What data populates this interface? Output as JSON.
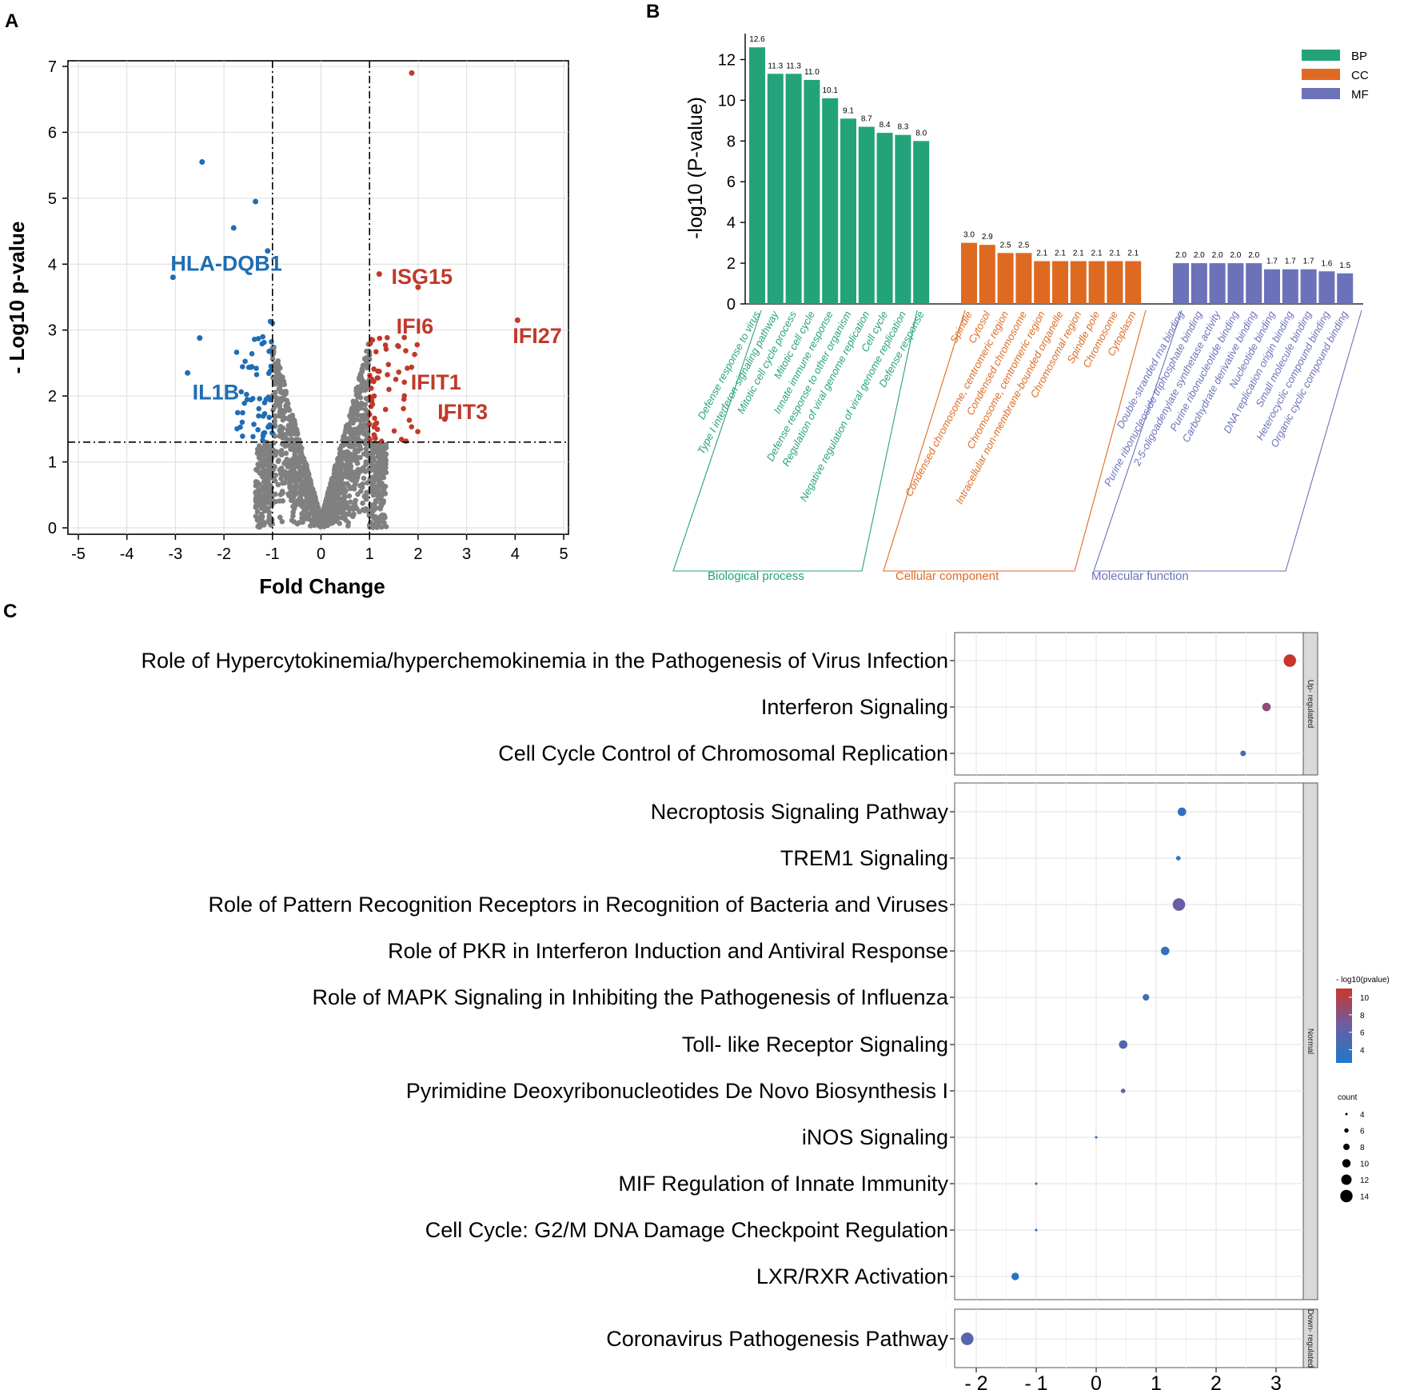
{
  "panels": {
    "a_letter": "A",
    "b_letter": "B",
    "c_letter": "C"
  },
  "colors": {
    "down": "#1f6db3",
    "up": "#c0392b",
    "ns": "#808080",
    "bp": "#24a37a",
    "cc": "#de6a21",
    "mf": "#6b72b9",
    "cbar_low": "#1f78c8",
    "cbar_mid": "#6a5ea5",
    "cbar_high": "#c8362b"
  },
  "chart_data": [
    {
      "type": "scatter",
      "name": "volcano",
      "xlabel": "Fold Change",
      "ylabel": "- Log10 p-value",
      "xlim": [
        -5,
        5
      ],
      "ylim": [
        0,
        7
      ],
      "x_ticks": [
        "-5",
        "-4",
        "-3",
        "-2",
        "-1",
        "0",
        "1",
        "2",
        "3",
        "4",
        "5"
      ],
      "y_ticks": [
        "0",
        "1",
        "2",
        "3",
        "4",
        "5",
        "6",
        "7"
      ],
      "thresholds": {
        "fc": [
          -1,
          1
        ],
        "p": 1.3
      },
      "labels": [
        {
          "text": "HLA-DQB1",
          "x": -3.1,
          "y": 3.9,
          "group": "down"
        },
        {
          "text": "IL1B",
          "x": -2.65,
          "y": 1.95,
          "group": "down"
        },
        {
          "text": "ISG15",
          "x": 1.45,
          "y": 3.7,
          "group": "up"
        },
        {
          "text": "IFI6",
          "x": 1.55,
          "y": 2.95,
          "group": "up"
        },
        {
          "text": "IFIT1",
          "x": 1.85,
          "y": 2.1,
          "group": "up"
        },
        {
          "text": "IFIT3",
          "x": 2.4,
          "y": 1.65,
          "group": "up"
        },
        {
          "text": "IFI27",
          "x": 3.95,
          "y": 2.8,
          "group": "up"
        }
      ],
      "highlight_points": [
        {
          "x": 1.87,
          "y": 6.9
        },
        {
          "x": 4.05,
          "y": 3.15
        },
        {
          "x": -2.45,
          "y": 5.55
        },
        {
          "x": -1.35,
          "y": 4.95
        },
        {
          "x": -1.8,
          "y": 4.55
        },
        {
          "x": -1.1,
          "y": 4.2
        },
        {
          "x": -3.05,
          "y": 3.8
        },
        {
          "x": -2.5,
          "y": 2.88
        },
        {
          "x": -2.75,
          "y": 2.35
        },
        {
          "x": 1.2,
          "y": 3.85
        },
        {
          "x": 2.0,
          "y": 3.65
        },
        {
          "x": 2.55,
          "y": 1.65
        }
      ]
    },
    {
      "type": "bar",
      "name": "go_enrichment",
      "ylabel": "-log10 (P-value)",
      "ylim": [
        0,
        13
      ],
      "y_ticks": [
        "0",
        "2",
        "4",
        "6",
        "8",
        "10",
        "12"
      ],
      "legend": [
        "BP",
        "CC",
        "MF"
      ],
      "groups": [
        {
          "name": "Biological process",
          "key": "bp",
          "categories": [
            "Defense response to virus",
            "Type I interferon signaling pathway",
            "Mitotic cell cycle process",
            "Mitotic cell cycle",
            "Innate immune response",
            "Defense response to other organism",
            "Regulation of viral genome replication",
            "Cell cycle",
            "Negative regulation of viral genome replication",
            "Defense response"
          ],
          "values": [
            12.6,
            11.3,
            11.3,
            11.0,
            10.1,
            9.1,
            8.7,
            8.4,
            8.3,
            8.0
          ],
          "value_labels": [
            "12.6",
            "11.3",
            "11.3",
            "11.0",
            "10.1",
            "9.1",
            "8.7",
            "8.4",
            "8.3",
            "8.0"
          ]
        },
        {
          "name": "Cellular component",
          "key": "cc",
          "categories": [
            "Spindle",
            "Cytosol",
            "Condensed chromosome, centromeric region",
            "Condensed chromosome",
            "Chromosome, centromeric region",
            "Intracellular non-membrane-bounded organelle",
            "Chromosomal region",
            "Spindle pole",
            "Chromosome",
            "Cytoplasm"
          ],
          "values": [
            3.0,
            2.9,
            2.5,
            2.5,
            2.1,
            2.1,
            2.1,
            2.1,
            2.1,
            2.1
          ],
          "value_labels": [
            "3.0",
            "2.9",
            "2.5",
            "2.5",
            "2.1",
            "2.1",
            "2.1",
            "2.1",
            "2.1",
            "2.1"
          ]
        },
        {
          "name": "Molecular function",
          "key": "mf",
          "categories": [
            "Double-stranded rna binding",
            "Purine ribonucleoside triphosphate binding",
            "2-5-oligoadenylate synthetase activity",
            "Purine ribonucleotide binding",
            "Carbohydrate derivative binding",
            "Nucleotide binding",
            "DNA replication origin binding",
            "Small molecule binding",
            "Heterocyclic compound binding",
            "Organic cyclic compound binding"
          ],
          "values": [
            2.0,
            2.0,
            2.0,
            2.0,
            2.0,
            1.7,
            1.7,
            1.7,
            1.6,
            1.5
          ],
          "value_labels": [
            "2.0",
            "2.0",
            "2.0",
            "2.0",
            "2.0",
            "1.7",
            "1.7",
            "1.7",
            "1.6",
            "1.5"
          ]
        }
      ]
    },
    {
      "type": "scatter",
      "name": "pathway_dotplot",
      "xlim": [
        -2.5,
        3.5
      ],
      "x_ticks": [
        "- 2",
        "- 1",
        "0",
        "1",
        "2",
        "3"
      ],
      "x_tick_values": [
        -2,
        -1,
        0,
        1,
        2,
        3
      ],
      "facets": [
        {
          "label": "Up- regulated",
          "rows": 3
        },
        {
          "label": "Normal",
          "rows": 11
        },
        {
          "label": "Down- regulated",
          "rows": 1
        }
      ],
      "pathways": [
        {
          "name": "Role of Hypercytokinemia/hyperchemokinemia in the Pathogenesis of Virus Infection",
          "facet": 0,
          "x": 3.23,
          "pval": 11,
          "count": 14
        },
        {
          "name": "Interferon Signaling",
          "facet": 0,
          "x": 2.84,
          "pval": 8.5,
          "count": 10
        },
        {
          "name": "Cell Cycle Control of Chromosomal Replication",
          "facet": 0,
          "x": 2.45,
          "pval": 5.0,
          "count": 7
        },
        {
          "name": "Necroptosis Signaling Pathway",
          "facet": 1,
          "x": 1.43,
          "pval": 3.6,
          "count": 10
        },
        {
          "name": "TREM1 Signaling",
          "facet": 1,
          "x": 1.37,
          "pval": 3.2,
          "count": 6
        },
        {
          "name": "Role of Pattern Recognition Receptors in Recognition of Bacteria and Viruses",
          "facet": 1,
          "x": 1.38,
          "pval": 6.6,
          "count": 14
        },
        {
          "name": "Role of PKR in Interferon Induction and Antiviral Response",
          "facet": 1,
          "x": 1.15,
          "pval": 3.6,
          "count": 10
        },
        {
          "name": "Role of MAPK Signaling in Inhibiting the Pathogenesis of Influenza",
          "facet": 1,
          "x": 0.83,
          "pval": 4.2,
          "count": 8
        },
        {
          "name": "Toll- like Receptor Signaling",
          "facet": 1,
          "x": 0.45,
          "pval": 5.4,
          "count": 10
        },
        {
          "name": "Pyrimidine Deoxyribonucleotides De Novo Biosynthesis I",
          "facet": 1,
          "x": 0.45,
          "pval": 6.2,
          "count": 6
        },
        {
          "name": "iNOS Signaling",
          "facet": 1,
          "x": 0.0,
          "pval": 3.0,
          "count": 4
        },
        {
          "name": "MIF Regulation of Innate Immunity",
          "facet": 1,
          "x": -1.0,
          "pval": 3.0,
          "count": 4
        },
        {
          "name": "Cell Cycle: G2/M DNA Damage Checkpoint Regulation",
          "facet": 1,
          "x": -1.0,
          "pval": 3.0,
          "count": 4
        },
        {
          "name": "LXR/RXR Activation",
          "facet": 1,
          "x": -1.35,
          "pval": 2.6,
          "count": 9
        },
        {
          "name": "Coronavirus Pathogenesis Pathway",
          "facet": 2,
          "x": -2.15,
          "pval": 5.8,
          "count": 14
        }
      ],
      "color_legend": {
        "title": "- log10(pvalue)",
        "ticks": [
          "10",
          "8",
          "6",
          "4"
        ],
        "tick_values": [
          10,
          8,
          6,
          4
        ],
        "range": [
          2.5,
          11
        ]
      },
      "size_legend": {
        "title": "count",
        "ticks": [
          "4",
          "6",
          "8",
          "10",
          "12",
          "14"
        ],
        "tick_values": [
          4,
          6,
          8,
          10,
          12,
          14
        ]
      }
    }
  ]
}
